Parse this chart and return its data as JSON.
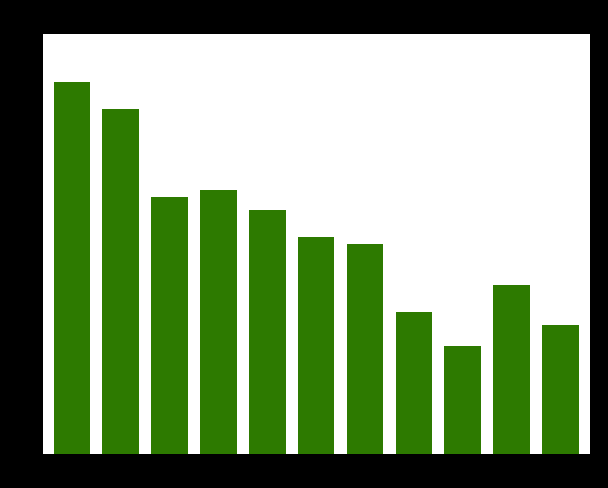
{
  "values": [
    55,
    51,
    38,
    39,
    36,
    32,
    31,
    21,
    16,
    25,
    19
  ],
  "bar_color": "#2d7a00",
  "background_color": "#000000",
  "plot_background": "#ffffff",
  "grid_color": "#cccccc",
  "ylim": [
    0,
    62
  ],
  "bar_width": 0.75
}
